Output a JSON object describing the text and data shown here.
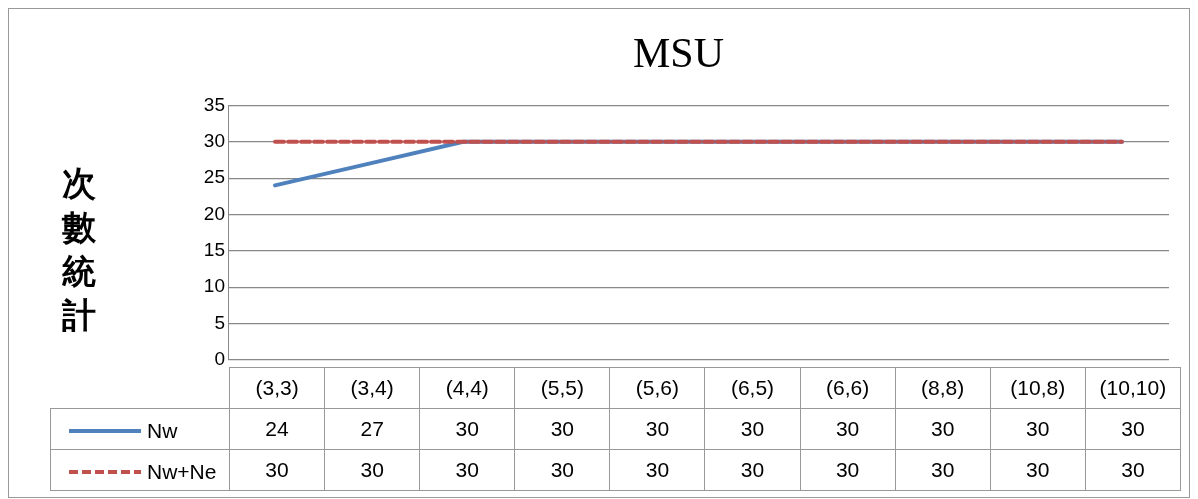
{
  "chart_data": {
    "type": "line",
    "title": "MSU",
    "ylabel": "次數統計",
    "categories": [
      "(3,3)",
      "(3,4)",
      "(4,4)",
      "(5,5)",
      "(5,6)",
      "(6,5)",
      "(6,6)",
      "(8,8)",
      "(10,8)",
      "(10,10)"
    ],
    "series": [
      {
        "name": "Nw",
        "color": "#4f81bd",
        "line_style": "solid",
        "values": [
          24,
          27,
          30,
          30,
          30,
          30,
          30,
          30,
          30,
          30
        ]
      },
      {
        "name": "Nw+Ne",
        "color": "#c0504d",
        "line_style": "dashed",
        "values": [
          30,
          30,
          30,
          30,
          30,
          30,
          30,
          30,
          30,
          30
        ]
      }
    ],
    "ylim": [
      0,
      35
    ],
    "yticks": [
      0,
      5,
      10,
      15,
      20,
      25,
      30,
      35
    ],
    "grid": "y",
    "legend": "bottom",
    "marker": "none",
    "data_labels": true
  }
}
